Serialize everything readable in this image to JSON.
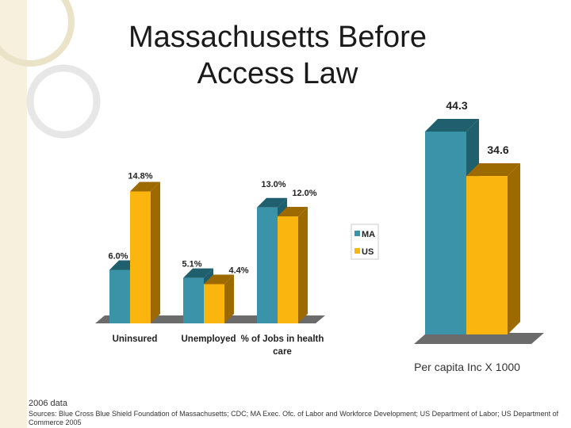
{
  "slide": {
    "title_line1": "Massachusetts Before",
    "title_line2": "Access Law",
    "note": "2006 data",
    "sources": "Sources: Blue Cross Blue Shield Foundation of Massachusetts; CDC; MA Exec. Ofc. of Labor and Workforce Development; US Department of Labor; US Department of Commerce 2005"
  },
  "colors": {
    "ma": "#3a93a8",
    "us": "#fbb50f",
    "ma_side": "#1f5f6e",
    "us_side": "#9c6a00",
    "floor": "#6b6b6b",
    "background_strip": "#f6f0dc"
  },
  "chart_data": [
    {
      "type": "bar",
      "categories": [
        "Uninsured",
        "Unemployed",
        "% of Jobs in health care"
      ],
      "series": [
        {
          "name": "MA",
          "values": [
            6.0,
            5.1,
            13.0
          ],
          "labels": [
            "6.0%",
            "5.1%",
            "13.0%"
          ]
        },
        {
          "name": "US",
          "values": [
            14.8,
            4.4,
            12.0
          ],
          "labels": [
            "14.8%",
            "4.4%",
            "12.0%"
          ]
        }
      ],
      "ylim": [
        0,
        16
      ],
      "legend": "right",
      "grid": false
    },
    {
      "type": "bar",
      "categories": [
        ""
      ],
      "series": [
        {
          "name": "MA",
          "values": [
            44.3
          ],
          "labels": [
            "44.3"
          ]
        },
        {
          "name": "US",
          "values": [
            34.6
          ],
          "labels": [
            "34.6"
          ]
        }
      ],
      "xlabel": "Per capita Inc X 1000",
      "ylim": [
        0,
        44.3
      ],
      "legend": "none",
      "grid": false
    }
  ]
}
